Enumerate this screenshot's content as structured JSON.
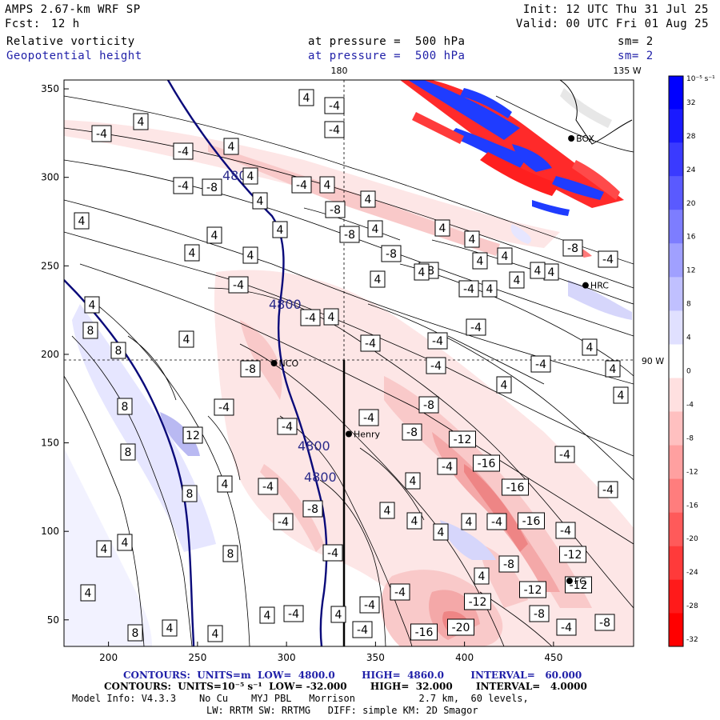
{
  "header": {
    "model": "AMPS 2.67-km WRF SP",
    "fcst_label": "Fcst:",
    "fcst_value": "12 h",
    "init": "Init: 12 UTC Thu 31 Jul 25",
    "valid": "Valid: 00 UTC Fri 01 Aug 25",
    "field1": "Relative vorticity",
    "field1_level": "at pressure =  500 hPa",
    "field1_sm": "sm= 2",
    "field2": "Geopotential height",
    "field2_level": "at pressure =  500 hPa",
    "field2_sm": "sm= 2"
  },
  "map": {
    "x_ticks": [
      "200",
      "250",
      "300",
      "350",
      "400",
      "450"
    ],
    "y_ticks": [
      "350",
      "300",
      "250",
      "200",
      "150",
      "100",
      "50"
    ],
    "meridian_top_label": "180",
    "meridian_corner_label": "135 W",
    "parallel_label": "90 W",
    "stations": [
      {
        "name": "NCO",
        "x": 293,
        "y": 195
      },
      {
        "name": "Henry",
        "x": 335,
        "y": 155
      },
      {
        "name": "HRC",
        "x": 468,
        "y": 239
      },
      {
        "name": "BOX",
        "x": 460,
        "y": 322
      },
      {
        "name": "FG",
        "x": 459,
        "y": 72
      }
    ],
    "height_contour_labels": [
      "4800",
      "4800",
      "4800",
      "4800"
    ],
    "vorticity_labels": [
      "-4",
      "4",
      "-8",
      "8",
      "-12",
      "12",
      "-16",
      "-20",
      "4",
      "-4",
      "8",
      "-8"
    ]
  },
  "colorbar": {
    "units": "10⁻⁵ s⁻¹",
    "ticks": [
      "32",
      "28",
      "24",
      "20",
      "16",
      "12",
      "8",
      "4",
      "0",
      "-4",
      "-8",
      "-12",
      "-16",
      "-20",
      "-24",
      "-28",
      "-32"
    ],
    "colors": [
      "#0000ff",
      "#1a1aff",
      "#3a3aff",
      "#5a5aff",
      "#7d7dff",
      "#a0a0ff",
      "#c0c0ff",
      "#e0e0ff",
      "#ffffff",
      "#ffe0e0",
      "#ffc0c0",
      "#ffa0a0",
      "#ff7d7d",
      "#ff5a5a",
      "#ff3a3a",
      "#ff1a1a",
      "#ff0000"
    ]
  },
  "footer": {
    "line1": "CONTOURS:  UNITS=m  LOW=  4800.0        HIGH=  4860.0        INTERVAL=   60.000",
    "line2": "CONTOURS:  UNITS=10⁻⁵ s⁻¹  LOW= -32.000       HIGH=  32.000       INTERVAL=   4.0000",
    "line3": "Model Info: V4.3.3    No Cu    MYJ PBL   Morrison           2.7 km,  60 levels,",
    "line4": "LW: RRTM SW: RRTMG   DIFF: simple KM: 2D Smagor"
  }
}
